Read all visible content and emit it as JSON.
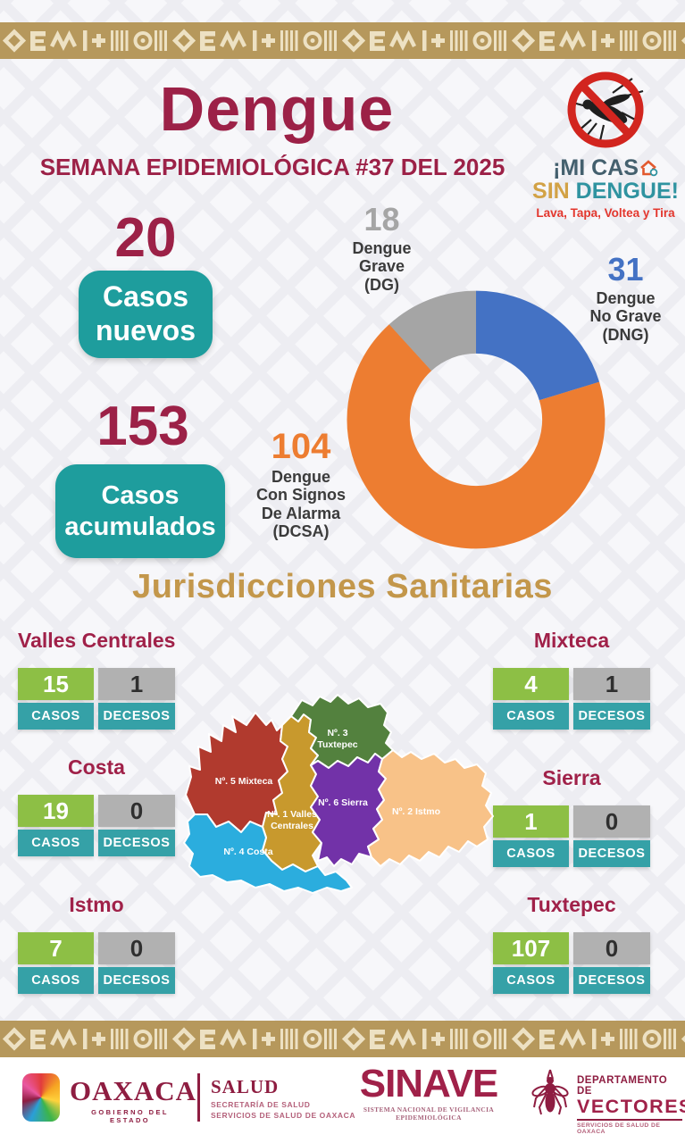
{
  "header": {
    "title": "Dengue",
    "subtitle": "SEMANA EPIDEMIOLÓGICA #37 DEL 2025"
  },
  "campaign": {
    "line1": "¡MI CAS",
    "line2_word1": "SIN",
    "line2_word2": "DENGUE!",
    "tagline": "Lava, Tapa, Voltea y Tira"
  },
  "stats": {
    "new": {
      "value": "20",
      "label": "Casos\nnuevos"
    },
    "accumulated": {
      "value": "153",
      "label": "Casos\nacumulados"
    }
  },
  "chart_data": {
    "type": "pie",
    "subtype": "donut",
    "title": "",
    "total": 153,
    "start_angle_deg": -90,
    "direction": "clockwise",
    "inner_radius_ratio": 0.51,
    "legend_position": "callouts",
    "segments": [
      {
        "name": "Dengue No Grave (DNG)",
        "value": 31,
        "color": "#4472c4",
        "callout": "Dengue\nNo Grave\n(DNG)"
      },
      {
        "name": "Dengue Con Signos De Alarma (DCSA)",
        "value": 104,
        "color": "#ed7d31",
        "callout": "Dengue\nCon Signos\nDe Alarma\n(DCSA)"
      },
      {
        "name": "Dengue Grave (DG)",
        "value": 18,
        "color": "#a5a5a5",
        "callout": "Dengue\nGrave\n(DG)"
      }
    ]
  },
  "jurisdictions": {
    "heading": "Jurisdicciones Sanitarias",
    "cases_header": "CASOS",
    "deaths_header": "DECESOS",
    "regions": [
      {
        "name": "Valles Centrales",
        "cases": "15",
        "deaths": "1"
      },
      {
        "name": "Costa",
        "cases": "19",
        "deaths": "0"
      },
      {
        "name": "Istmo",
        "cases": "7",
        "deaths": "0"
      },
      {
        "name": "Mixteca",
        "cases": "4",
        "deaths": "1"
      },
      {
        "name": "Sierra",
        "cases": "1",
        "deaths": "0"
      },
      {
        "name": "Tuxtepec",
        "cases": "107",
        "deaths": "0"
      }
    ],
    "map_labels": {
      "mixteca": "Nº. 5 Mixteca",
      "tuxtepec_l1": "Nº. 3",
      "tuxtepec_l2": "Tuxtepec",
      "valles_l1": "Nº. 1 Valles",
      "valles_l2": "Centrales",
      "sierra": "Nº. 6 Sierra",
      "istmo": "Nº. 2 Istmo",
      "costa": "Nº. 4 Costa"
    },
    "map_colors": {
      "mixteca": "#b13a2e",
      "tuxtepec": "#53813e",
      "valles": "#c8992d",
      "sierra": "#7232a8",
      "istmo": "#f8c288",
      "costa": "#2badde"
    }
  },
  "footer": {
    "oaxaca": {
      "name": "OAXACA",
      "tagline": "GOBIERNO DEL ESTADO"
    },
    "salud": {
      "name": "SALUD",
      "line1": "SECRETARÍA DE SALUD",
      "line2": "SERVICIOS DE SALUD DE OAXACA"
    },
    "sinave": {
      "name": "SINAVE",
      "tagline": "SISTEMA NACIONAL DE VIGILANCIA EPIDEMIOLÓGICA"
    },
    "vectores": {
      "line1": "DEPARTAMENTO DE",
      "name": "VECTORES",
      "tagline": "SERVICIOS DE SALUD DE OAXACA"
    }
  },
  "colors": {
    "maroon": "#9c2147",
    "gold_heading": "#c3974b",
    "teal_box": "#1e9d9d",
    "teal_header": "#35a1a7",
    "green_cell": "#8dbf45",
    "gray_cell": "#b1b1b1",
    "band_tan": "#b6985c",
    "band_cream": "#ede1c3"
  }
}
